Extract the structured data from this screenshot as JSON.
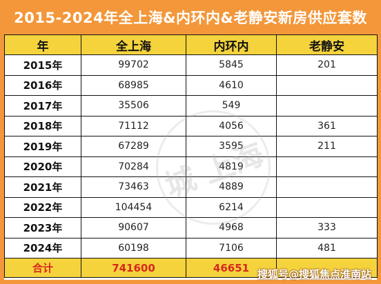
{
  "title": "2015-2024年全上海&内环内&老静安新房供应套数",
  "headers": [
    "年",
    "全上海",
    "内环内",
    "老静安"
  ],
  "rows": [
    {
      "year": "2015年",
      "all": "99702",
      "inner": "5845",
      "jingan": "201"
    },
    {
      "year": "2016年",
      "all": "68985",
      "inner": "4610",
      "jingan": ""
    },
    {
      "year": "2017年",
      "all": "35506",
      "inner": "549",
      "jingan": ""
    },
    {
      "year": "2018年",
      "all": "71112",
      "inner": "4056",
      "jingan": "361"
    },
    {
      "year": "2019年",
      "all": "67289",
      "inner": "3595",
      "jingan": "211"
    },
    {
      "year": "2020年",
      "all": "70284",
      "inner": "4819",
      "jingan": ""
    },
    {
      "year": "2021年",
      "all": "73463",
      "inner": "4889",
      "jingan": ""
    },
    {
      "year": "2022年",
      "all": "104454",
      "inner": "6214",
      "jingan": ""
    },
    {
      "year": "2023年",
      "all": "90607",
      "inner": "4968",
      "jingan": "333"
    },
    {
      "year": "2024年",
      "all": "60198",
      "inner": "7106",
      "jingan": "481"
    }
  ],
  "total": {
    "label": "合计",
    "all": "741600",
    "inner": "46651",
    "jingan": ""
  },
  "watermark": "城 上海",
  "footer_brand": "搜狐号@搜狐焦点淮南站",
  "colors": {
    "frame": "#f3973a",
    "header": "#f4d33d",
    "total_text": "#d8281b"
  }
}
